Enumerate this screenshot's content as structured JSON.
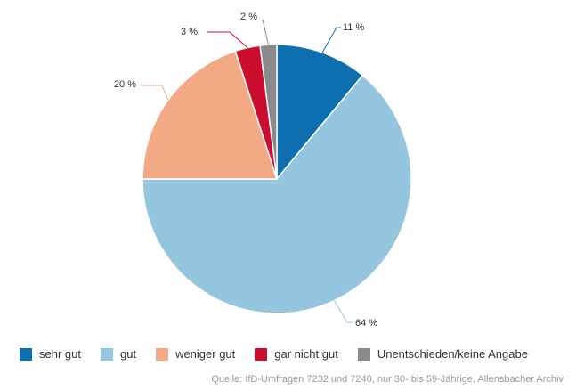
{
  "chart_data": {
    "type": "pie",
    "categories": [
      "sehr gut",
      "gut",
      "weniger gut",
      "gar nicht gut",
      "Unentschieden/keine Angabe"
    ],
    "values": [
      11,
      64,
      20,
      3,
      2
    ],
    "value_labels": [
      "11 %",
      "64 %",
      "20 %",
      "3 %",
      "2 %"
    ],
    "colors": [
      "#0e6fb0",
      "#95c6e0",
      "#f4a985",
      "#cc0d2f",
      "#8a8a8c"
    ],
    "legend_position": "bottom-left",
    "source": "Quelle: IfD-Umfragen 7232 und 7240, nur 30- bis 59-Jährige, Allensbacher Archiv"
  }
}
